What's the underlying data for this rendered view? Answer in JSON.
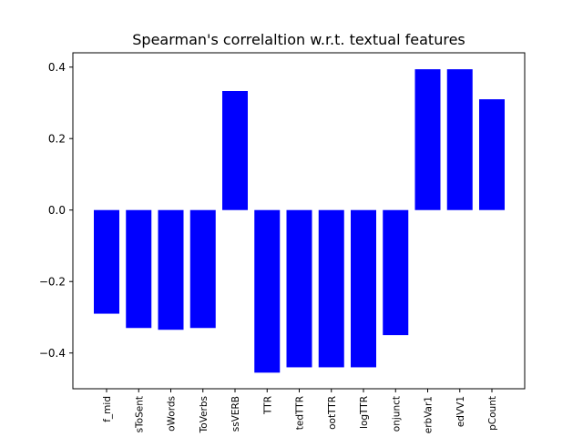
{
  "chart_data": {
    "type": "bar",
    "title": "Spearman's correlaltion w.r.t. textual features",
    "xlabel": "",
    "ylabel": "",
    "categories": [
      "f_mid",
      "sToSent",
      "oWords",
      "ToVerbs",
      "ssVERB",
      "TTR",
      "tedTTR",
      "ootTTR",
      "logTTR",
      "onjunct",
      "erbVar1",
      "edVV1",
      "pCount"
    ],
    "values": [
      -0.29,
      -0.33,
      -0.335,
      -0.33,
      0.333,
      -0.455,
      -0.44,
      -0.44,
      -0.44,
      -0.35,
      0.394,
      0.394,
      0.31
    ],
    "ylim": [
      -0.5,
      0.44
    ],
    "yticks": [
      -0.4,
      -0.2,
      0.0,
      0.2,
      0.4
    ],
    "ytick_labels": [
      "−0.4",
      "−0.2",
      "0.0",
      "0.2",
      "0.4"
    ],
    "bar_color": "#0000ff",
    "grid": false
  }
}
